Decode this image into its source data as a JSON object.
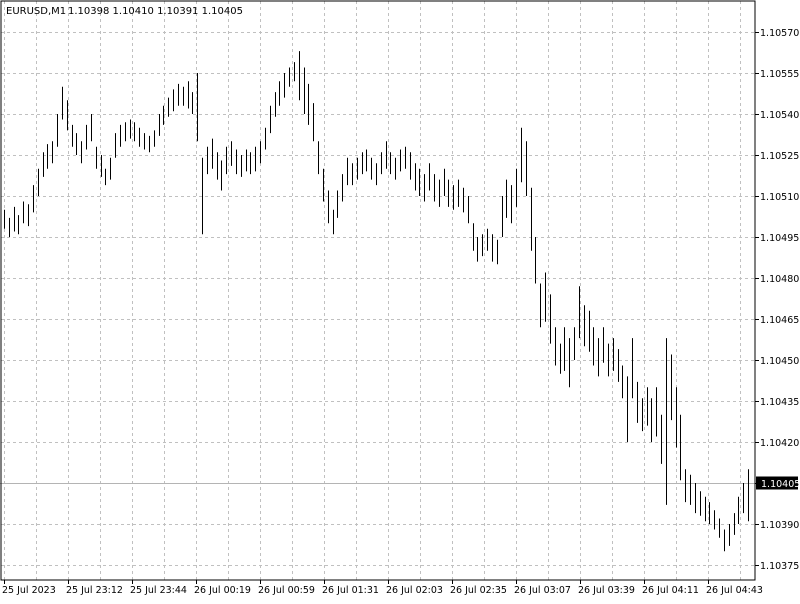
{
  "window": {
    "symbol_label": "EURUSD,M1",
    "ohlc_label": "1.10398 1.10410 1.10391 1.10405"
  },
  "colors": {
    "background": "#ffffff",
    "bars": "#000000",
    "grid": "#c0c0c0",
    "axis": "#000000",
    "current_price_line": "#b4b4b4",
    "price_tag_bg": "#000000",
    "price_tag_fg": "#ffffff"
  },
  "chart_data": {
    "type": "ohlc",
    "title": "EURUSD,M1",
    "ylim": [
      1.1037,
      1.1058
    ],
    "y_ticks": [
      "1.10570",
      "1.10555",
      "1.10540",
      "1.10525",
      "1.10510",
      "1.10495",
      "1.10480",
      "1.10465",
      "1.10450",
      "1.10435",
      "1.10420",
      "1.10405",
      "1.10390",
      "1.10375"
    ],
    "x_tick_labels": [
      "25 Jul 2023",
      "25 Jul 23:12",
      "25 Jul 23:44",
      "26 Jul 00:19",
      "26 Jul 00:59",
      "26 Jul 01:31",
      "26 Jul 02:03",
      "26 Jul 02:35",
      "26 Jul 03:07",
      "26 Jul 03:39",
      "26 Jul 04:11",
      "26 Jul 04:43"
    ],
    "current_price": "1.10405",
    "grid": true,
    "series": [
      {
        "values": [
          [
            1.10505,
            1.10498
          ],
          [
            1.10502,
            1.10495
          ],
          [
            1.10506,
            1.10497
          ],
          [
            1.10503,
            1.10496
          ],
          [
            1.10508,
            1.105
          ],
          [
            1.10507,
            1.10499
          ],
          [
            1.10514,
            1.10504
          ],
          [
            1.1052,
            1.1051
          ],
          [
            1.10526,
            1.10517
          ],
          [
            1.10529,
            1.1052
          ],
          [
            1.1053,
            1.10522
          ],
          [
            1.1054,
            1.10528
          ],
          [
            1.1055,
            1.10538
          ],
          [
            1.10545,
            1.10534
          ],
          [
            1.10536,
            1.10528
          ],
          [
            1.10533,
            1.10525
          ],
          [
            1.1053,
            1.10522
          ],
          [
            1.10536,
            1.10527
          ],
          [
            1.1054,
            1.1053
          ],
          [
            1.10528,
            1.1052
          ],
          [
            1.10525,
            1.10517
          ],
          [
            1.1052,
            1.10514
          ],
          [
            1.10524,
            1.10516
          ],
          [
            1.10533,
            1.10524
          ],
          [
            1.10536,
            1.10528
          ],
          [
            1.10537,
            1.1053
          ],
          [
            1.10538,
            1.10531
          ],
          [
            1.10537,
            1.1053
          ],
          [
            1.10535,
            1.10528
          ],
          [
            1.10533,
            1.10527
          ],
          [
            1.10532,
            1.10526
          ],
          [
            1.10534,
            1.10528
          ],
          [
            1.1054,
            1.10532
          ],
          [
            1.10543,
            1.10536
          ],
          [
            1.10546,
            1.10539
          ],
          [
            1.10549,
            1.10541
          ],
          [
            1.10551,
            1.10543
          ],
          [
            1.1055,
            1.10543
          ],
          [
            1.10552,
            1.10542
          ],
          [
            1.10548,
            1.1054
          ],
          [
            1.10555,
            1.1053
          ],
          [
            1.10524,
            1.10496
          ],
          [
            1.10528,
            1.10518
          ],
          [
            1.10531,
            1.1052
          ],
          [
            1.10526,
            1.10516
          ],
          [
            1.10523,
            1.10512
          ],
          [
            1.10528,
            1.10518
          ],
          [
            1.1053,
            1.10521
          ],
          [
            1.10527,
            1.10518
          ],
          [
            1.10525,
            1.10517
          ],
          [
            1.10527,
            1.10519
          ],
          [
            1.10526,
            1.10518
          ],
          [
            1.10528,
            1.10519
          ],
          [
            1.1053,
            1.10522
          ],
          [
            1.10535,
            1.10527
          ],
          [
            1.10543,
            1.10533
          ],
          [
            1.10548,
            1.10539
          ],
          [
            1.10552,
            1.10543
          ],
          [
            1.10555,
            1.10546
          ],
          [
            1.10557,
            1.1055
          ],
          [
            1.10559,
            1.10552
          ],
          [
            1.10563,
            1.10545
          ],
          [
            1.10557,
            1.1054
          ],
          [
            1.10551,
            1.10536
          ],
          [
            1.10544,
            1.1053
          ],
          [
            1.1053,
            1.10518
          ],
          [
            1.1052,
            1.10508
          ],
          [
            1.10512,
            1.105
          ],
          [
            1.10505,
            1.10496
          ],
          [
            1.10512,
            1.10502
          ],
          [
            1.10518,
            1.10508
          ],
          [
            1.10524,
            1.10514
          ],
          [
            1.10522,
            1.10514
          ],
          [
            1.10524,
            1.10516
          ],
          [
            1.10526,
            1.10518
          ],
          [
            1.10527,
            1.10519
          ],
          [
            1.10524,
            1.10516
          ],
          [
            1.10522,
            1.10514
          ],
          [
            1.10526,
            1.10518
          ],
          [
            1.1053,
            1.1052
          ],
          [
            1.10526,
            1.10518
          ],
          [
            1.10524,
            1.10516
          ],
          [
            1.10527,
            1.10519
          ],
          [
            1.10528,
            1.1052
          ],
          [
            1.10526,
            1.10516
          ],
          [
            1.10522,
            1.10512
          ],
          [
            1.1052,
            1.1051
          ],
          [
            1.10518,
            1.10508
          ],
          [
            1.10522,
            1.10512
          ],
          [
            1.10518,
            1.10508
          ],
          [
            1.10516,
            1.10506
          ],
          [
            1.1052,
            1.1051
          ],
          [
            1.10516,
            1.10506
          ],
          [
            1.10514,
            1.10505
          ],
          [
            1.10516,
            1.10506
          ],
          [
            1.10513,
            1.10504
          ],
          [
            1.1051,
            1.105
          ],
          [
            1.105,
            1.1049
          ],
          [
            1.10495,
            1.10486
          ],
          [
            1.10496,
            1.10488
          ],
          [
            1.10498,
            1.1049
          ],
          [
            1.10496,
            1.10486
          ],
          [
            1.10494,
            1.10485
          ],
          [
            1.1051,
            1.10495
          ],
          [
            1.10516,
            1.10502
          ],
          [
            1.10514,
            1.105
          ],
          [
            1.1052,
            1.10506
          ],
          [
            1.10535,
            1.10515
          ],
          [
            1.1053,
            1.1051
          ],
          [
            1.10513,
            1.1049
          ],
          [
            1.10495,
            1.10478
          ],
          [
            1.10478,
            1.10462
          ],
          [
            1.10482,
            1.10464
          ],
          [
            1.10474,
            1.10456
          ],
          [
            1.10462,
            1.10448
          ],
          [
            1.10456,
            1.10445
          ],
          [
            1.10462,
            1.10446
          ],
          [
            1.10458,
            1.1044
          ],
          [
            1.10462,
            1.1045
          ],
          [
            1.10477,
            1.10458
          ],
          [
            1.1047,
            1.10455
          ],
          [
            1.10468,
            1.10453
          ],
          [
            1.10462,
            1.10448
          ],
          [
            1.10458,
            1.10444
          ],
          [
            1.10462,
            1.10449
          ],
          [
            1.10456,
            1.10444
          ],
          [
            1.10458,
            1.10446
          ],
          [
            1.10454,
            1.10442
          ],
          [
            1.10448,
            1.10436
          ],
          [
            1.10444,
            1.1042
          ],
          [
            1.10458,
            1.10436
          ],
          [
            1.10442,
            1.10427
          ],
          [
            1.10436,
            1.10424
          ],
          [
            1.1044,
            1.10426
          ],
          [
            1.10436,
            1.1042
          ],
          [
            1.1044,
            1.10422
          ],
          [
            1.1043,
            1.10412
          ],
          [
            1.10458,
            1.10397
          ],
          [
            1.10452,
            1.10428
          ],
          [
            1.1044,
            1.10418
          ],
          [
            1.1043,
            1.10406
          ],
          [
            1.1041,
            1.10398
          ],
          [
            1.10408,
            1.10397
          ],
          [
            1.10405,
            1.10394
          ],
          [
            1.10402,
            1.10393
          ],
          [
            1.104,
            1.10391
          ],
          [
            1.10398,
            1.1039
          ],
          [
            1.10395,
            1.10388
          ],
          [
            1.10392,
            1.10385
          ],
          [
            1.10388,
            1.1038
          ],
          [
            1.1039,
            1.10382
          ],
          [
            1.10394,
            1.10386
          ],
          [
            1.104,
            1.1039
          ],
          [
            1.10405,
            1.10394
          ],
          [
            1.1041,
            1.10391
          ]
        ]
      }
    ]
  }
}
